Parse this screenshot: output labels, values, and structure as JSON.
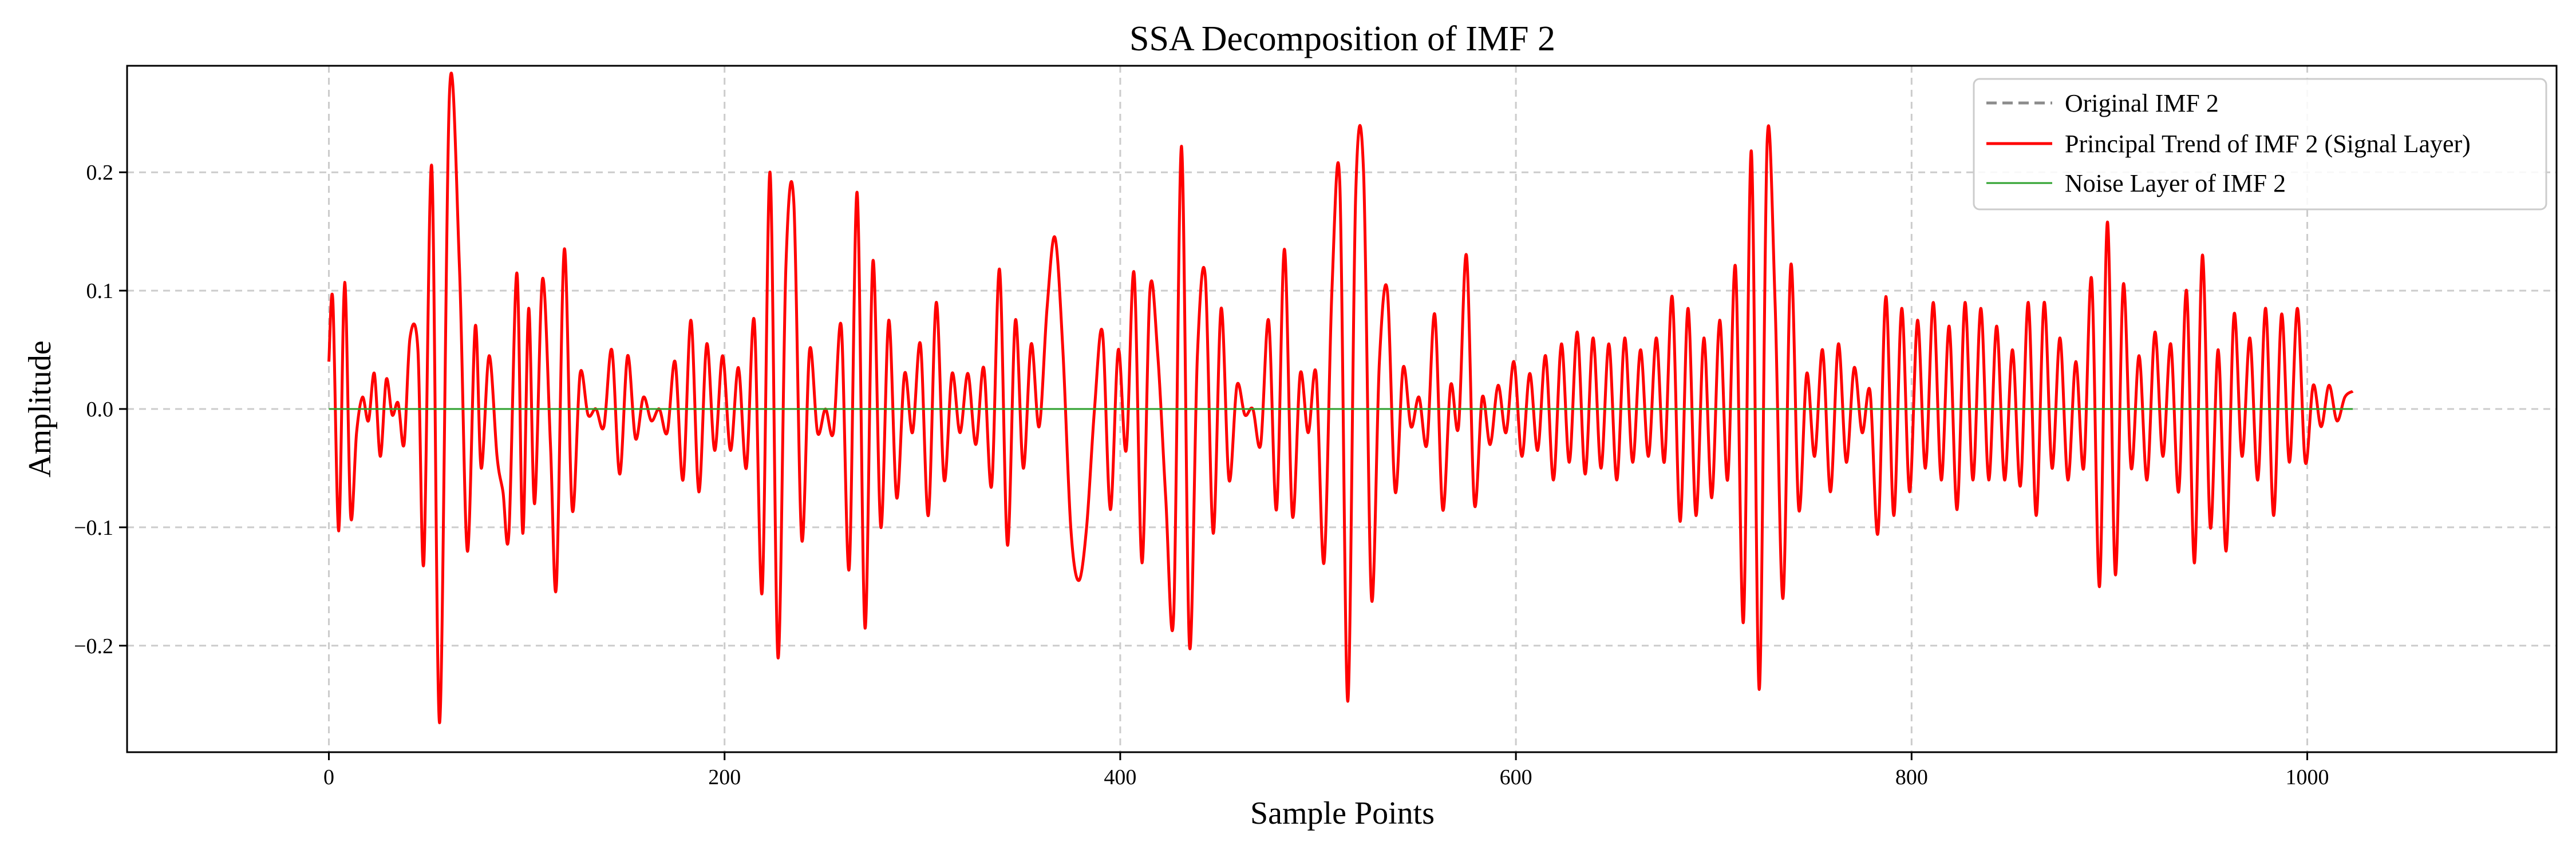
{
  "chart_data": {
    "type": "line",
    "title": "SSA Decomposition of IMF 2",
    "xlabel": "Sample Points",
    "ylabel": "Amplitude",
    "xlim": [
      -102,
      1126
    ],
    "ylim": [
      -0.29,
      0.29
    ],
    "xticks": [
      0,
      200,
      400,
      600,
      800,
      1000
    ],
    "xtick_labels": [
      "0",
      "200",
      "400",
      "600",
      "800",
      "1000"
    ],
    "yticks": [
      -0.2,
      -0.1,
      0.0,
      0.1,
      0.2
    ],
    "ytick_labels": [
      "−0.2",
      "−0.1",
      "0.0",
      "0.1",
      "0.2"
    ],
    "grid": true,
    "legend_position": "top-right",
    "n_points": 1024,
    "series": [
      {
        "name": "Original IMF 2",
        "color": "#8c8c8c",
        "style": "dashed",
        "values": []
      },
      {
        "name": "Principal Trend of IMF 2 (Signal Layer)",
        "color": "#ff0000",
        "style": "solid",
        "keypoints": [
          [
            0,
            0.04
          ],
          [
            2,
            0.092
          ],
          [
            5,
            -0.103
          ],
          [
            8,
            0.107
          ],
          [
            11,
            -0.09
          ],
          [
            14,
            -0.02
          ],
          [
            17,
            0.01
          ],
          [
            20,
            -0.01
          ],
          [
            23,
            0.03
          ],
          [
            26,
            -0.04
          ],
          [
            29,
            0.025
          ],
          [
            32,
            -0.005
          ],
          [
            35,
            0.005
          ],
          [
            38,
            -0.03
          ],
          [
            41,
            0.06
          ],
          [
            45,
            0.05
          ],
          [
            48,
            -0.13
          ],
          [
            52,
            0.205
          ],
          [
            56,
            -0.265
          ],
          [
            61,
            0.268
          ],
          [
            66,
            0.12
          ],
          [
            70,
            -0.12
          ],
          [
            74,
            0.07
          ],
          [
            77,
            -0.05
          ],
          [
            81,
            0.045
          ],
          [
            85,
            -0.04
          ],
          [
            88,
            -0.07
          ],
          [
            91,
            -0.105
          ],
          [
            95,
            0.115
          ],
          [
            98,
            -0.105
          ],
          [
            101,
            0.085
          ],
          [
            104,
            -0.08
          ],
          [
            108,
            0.11
          ],
          [
            112,
            -0.03
          ],
          [
            115,
            -0.15
          ],
          [
            119,
            0.135
          ],
          [
            123,
            -0.085
          ],
          [
            127,
            0.03
          ],
          [
            131,
            -0.005
          ],
          [
            135,
            0.0
          ],
          [
            139,
            -0.015
          ],
          [
            143,
            0.05
          ],
          [
            147,
            -0.055
          ],
          [
            151,
            0.045
          ],
          [
            155,
            -0.025
          ],
          [
            159,
            0.01
          ],
          [
            163,
            -0.01
          ],
          [
            167,
            0.0
          ],
          [
            171,
            -0.02
          ],
          [
            175,
            0.04
          ],
          [
            179,
            -0.06
          ],
          [
            183,
            0.075
          ],
          [
            187,
            -0.07
          ],
          [
            191,
            0.055
          ],
          [
            195,
            -0.035
          ],
          [
            199,
            0.045
          ],
          [
            203,
            -0.035
          ],
          [
            207,
            0.035
          ],
          [
            211,
            -0.05
          ],
          [
            215,
            0.075
          ],
          [
            219,
            -0.155
          ],
          [
            223,
            0.2
          ],
          [
            227,
            -0.21
          ],
          [
            231,
            0.12
          ],
          [
            235,
            0.175
          ],
          [
            239,
            -0.11
          ],
          [
            243,
            0.05
          ],
          [
            247,
            -0.02
          ],
          [
            251,
            0.0
          ],
          [
            255,
            -0.02
          ],
          [
            259,
            0.07
          ],
          [
            263,
            -0.135
          ],
          [
            267,
            0.183
          ],
          [
            271,
            -0.185
          ],
          [
            275,
            0.125
          ],
          [
            279,
            -0.1
          ],
          [
            283,
            0.075
          ],
          [
            287,
            -0.075
          ],
          [
            291,
            0.03
          ],
          [
            295,
            -0.02
          ],
          [
            299,
            0.055
          ],
          [
            303,
            -0.09
          ],
          [
            307,
            0.09
          ],
          [
            311,
            -0.06
          ],
          [
            315,
            0.03
          ],
          [
            319,
            -0.02
          ],
          [
            323,
            0.03
          ],
          [
            327,
            -0.03
          ],
          [
            331,
            0.035
          ],
          [
            335,
            -0.065
          ],
          [
            339,
            0.118
          ],
          [
            343,
            -0.115
          ],
          [
            347,
            0.075
          ],
          [
            351,
            -0.05
          ],
          [
            355,
            0.055
          ],
          [
            359,
            -0.015
          ],
          [
            363,
            0.085
          ],
          [
            367,
            0.145
          ],
          [
            371,
            0.05
          ],
          [
            375,
            -0.1
          ],
          [
            379,
            -0.145
          ],
          [
            383,
            -0.1
          ],
          [
            387,
            0.0
          ],
          [
            391,
            0.065
          ],
          [
            395,
            -0.085
          ],
          [
            399,
            0.05
          ],
          [
            403,
            -0.035
          ],
          [
            407,
            0.115
          ],
          [
            411,
            -0.13
          ],
          [
            415,
            0.1
          ],
          [
            419,
            0.045
          ],
          [
            423,
            -0.075
          ],
          [
            427,
            -0.175
          ],
          [
            431,
            0.222
          ],
          [
            435,
            -0.2
          ],
          [
            439,
            0.045
          ],
          [
            443,
            0.112
          ],
          [
            447,
            -0.105
          ],
          [
            451,
            0.085
          ],
          [
            455,
            -0.06
          ],
          [
            459,
            0.02
          ],
          [
            463,
            -0.005
          ],
          [
            467,
            0.0
          ],
          [
            471,
            -0.03
          ],
          [
            475,
            0.075
          ],
          [
            479,
            -0.085
          ],
          [
            483,
            0.135
          ],
          [
            487,
            -0.09
          ],
          [
            491,
            0.03
          ],
          [
            495,
            -0.02
          ],
          [
            499,
            0.03
          ],
          [
            503,
            -0.13
          ],
          [
            507,
            0.1
          ],
          [
            511,
            0.19
          ],
          [
            515,
            -0.247
          ],
          [
            519,
            0.18
          ],
          [
            523,
            0.2
          ],
          [
            527,
            -0.16
          ],
          [
            531,
            0.04
          ],
          [
            535,
            0.1
          ],
          [
            539,
            -0.07
          ],
          [
            543,
            0.035
          ],
          [
            547,
            -0.015
          ],
          [
            551,
            0.01
          ],
          [
            555,
            -0.03
          ],
          [
            559,
            0.08
          ],
          [
            563,
            -0.085
          ],
          [
            567,
            0.02
          ],
          [
            571,
            -0.015
          ],
          [
            575,
            0.13
          ],
          [
            579,
            -0.08
          ],
          [
            583,
            0.01
          ],
          [
            587,
            -0.03
          ],
          [
            591,
            0.02
          ],
          [
            595,
            -0.02
          ],
          [
            599,
            0.04
          ],
          [
            603,
            -0.04
          ],
          [
            607,
            0.03
          ],
          [
            611,
            -0.035
          ],
          [
            615,
            0.045
          ],
          [
            619,
            -0.06
          ],
          [
            623,
            0.055
          ],
          [
            627,
            -0.045
          ],
          [
            631,
            0.065
          ],
          [
            635,
            -0.055
          ],
          [
            639,
            0.06
          ],
          [
            643,
            -0.05
          ],
          [
            647,
            0.055
          ],
          [
            651,
            -0.06
          ],
          [
            655,
            0.06
          ],
          [
            659,
            -0.045
          ],
          [
            663,
            0.05
          ],
          [
            667,
            -0.04
          ],
          [
            671,
            0.06
          ],
          [
            675,
            -0.045
          ],
          [
            679,
            0.095
          ],
          [
            683,
            -0.095
          ],
          [
            687,
            0.085
          ],
          [
            691,
            -0.09
          ],
          [
            695,
            0.06
          ],
          [
            699,
            -0.075
          ],
          [
            703,
            0.075
          ],
          [
            707,
            -0.06
          ],
          [
            711,
            0.12
          ],
          [
            715,
            -0.18
          ],
          [
            719,
            0.218
          ],
          [
            723,
            -0.237
          ],
          [
            727,
            0.226
          ],
          [
            731,
            0.09
          ],
          [
            735,
            -0.16
          ],
          [
            739,
            0.122
          ],
          [
            743,
            -0.085
          ],
          [
            747,
            0.03
          ],
          [
            751,
            -0.04
          ],
          [
            755,
            0.05
          ],
          [
            759,
            -0.07
          ],
          [
            763,
            0.055
          ],
          [
            767,
            -0.045
          ],
          [
            771,
            0.035
          ],
          [
            775,
            -0.02
          ],
          [
            779,
            0.015
          ],
          [
            783,
            -0.105
          ],
          [
            787,
            0.095
          ],
          [
            791,
            -0.09
          ],
          [
            795,
            0.085
          ],
          [
            799,
            -0.07
          ],
          [
            803,
            0.075
          ],
          [
            807,
            -0.05
          ],
          [
            811,
            0.09
          ],
          [
            815,
            -0.06
          ],
          [
            819,
            0.07
          ],
          [
            823,
            -0.085
          ],
          [
            827,
            0.09
          ],
          [
            831,
            -0.06
          ],
          [
            835,
            0.085
          ],
          [
            839,
            -0.06
          ],
          [
            843,
            0.07
          ],
          [
            847,
            -0.06
          ],
          [
            851,
            0.05
          ],
          [
            855,
            -0.065
          ],
          [
            859,
            0.09
          ],
          [
            863,
            -0.09
          ],
          [
            867,
            0.09
          ],
          [
            871,
            -0.05
          ],
          [
            875,
            0.06
          ],
          [
            879,
            -0.06
          ],
          [
            883,
            0.04
          ],
          [
            887,
            -0.05
          ],
          [
            891,
            0.11
          ],
          [
            895,
            -0.15
          ],
          [
            899,
            0.158
          ],
          [
            903,
            -0.14
          ],
          [
            907,
            0.105
          ],
          [
            911,
            -0.05
          ],
          [
            915,
            0.045
          ],
          [
            919,
            -0.06
          ],
          [
            923,
            0.065
          ],
          [
            927,
            -0.04
          ],
          [
            931,
            0.055
          ],
          [
            935,
            -0.07
          ],
          [
            939,
            0.1
          ],
          [
            943,
            -0.13
          ],
          [
            947,
            0.13
          ],
          [
            951,
            -0.1
          ],
          [
            955,
            0.05
          ],
          [
            959,
            -0.12
          ],
          [
            963,
            0.08
          ],
          [
            967,
            -0.04
          ],
          [
            971,
            0.06
          ],
          [
            975,
            -0.06
          ],
          [
            979,
            0.085
          ],
          [
            983,
            -0.09
          ],
          [
            987,
            0.08
          ],
          [
            991,
            -0.045
          ],
          [
            995,
            0.085
          ],
          [
            999,
            -0.045
          ],
          [
            1003,
            0.02
          ],
          [
            1007,
            -0.015
          ],
          [
            1011,
            0.02
          ],
          [
            1015,
            -0.01
          ],
          [
            1019,
            0.01
          ],
          [
            1023,
            0.015
          ]
        ]
      },
      {
        "name": "Noise Layer of IMF 2",
        "color": "#2ca02c",
        "style": "solid",
        "values_constant": 0.0
      }
    ]
  }
}
